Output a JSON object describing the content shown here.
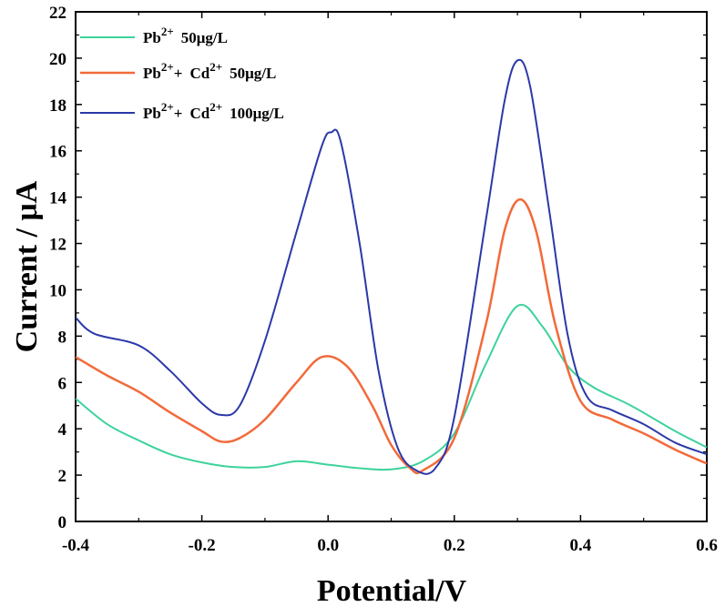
{
  "chart_data": {
    "type": "line",
    "xlabel": "Potential/V",
    "ylabel": "Current / μA",
    "xlim": [
      -0.4,
      0.6
    ],
    "ylim": [
      0,
      22
    ],
    "xticks": [
      "-0.4",
      "-0.2",
      "0.0",
      "0.2",
      "0.4",
      "0.6"
    ],
    "yticks": [
      "0",
      "2",
      "4",
      "6",
      "8",
      "10",
      "12",
      "14",
      "16",
      "18",
      "20",
      "22"
    ],
    "legend_position": "top-left",
    "series": [
      {
        "name": "Pb2+ 50μg/L",
        "legend": {
          "element": "Pb",
          "charge": "2+",
          "conc": "50μg/L"
        },
        "color": "#3dd39b",
        "points": [
          [
            -0.4,
            5.3
          ],
          [
            -0.35,
            4.2
          ],
          [
            -0.3,
            3.5
          ],
          [
            -0.25,
            2.9
          ],
          [
            -0.2,
            2.55
          ],
          [
            -0.15,
            2.35
          ],
          [
            -0.1,
            2.35
          ],
          [
            -0.05,
            2.6
          ],
          [
            0.0,
            2.45
          ],
          [
            0.05,
            2.3
          ],
          [
            0.1,
            2.25
          ],
          [
            0.15,
            2.6
          ],
          [
            0.2,
            3.8
          ],
          [
            0.25,
            6.8
          ],
          [
            0.3,
            9.3
          ],
          [
            0.34,
            8.4
          ],
          [
            0.38,
            6.7
          ],
          [
            0.42,
            5.8
          ],
          [
            0.48,
            5.0
          ],
          [
            0.55,
            3.9
          ],
          [
            0.6,
            3.2
          ]
        ]
      },
      {
        "name": "Pb2+ + Cd2+ 50μg/L",
        "legend": {
          "element1": "Pb",
          "charge1": "2+",
          "sep": "+",
          "element2": "Cd",
          "charge2": "2+",
          "conc": "50μg/L"
        },
        "color": "#f26a3a",
        "points": [
          [
            -0.4,
            7.1
          ],
          [
            -0.35,
            6.3
          ],
          [
            -0.3,
            5.6
          ],
          [
            -0.25,
            4.7
          ],
          [
            -0.2,
            3.9
          ],
          [
            -0.17,
            3.45
          ],
          [
            -0.14,
            3.6
          ],
          [
            -0.1,
            4.4
          ],
          [
            -0.05,
            6.0
          ],
          [
            -0.01,
            7.1
          ],
          [
            0.03,
            6.7
          ],
          [
            0.07,
            5.0
          ],
          [
            0.1,
            3.3
          ],
          [
            0.13,
            2.3
          ],
          [
            0.15,
            2.2
          ],
          [
            0.2,
            3.6
          ],
          [
            0.25,
            8.5
          ],
          [
            0.28,
            12.6
          ],
          [
            0.305,
            13.9
          ],
          [
            0.33,
            12.5
          ],
          [
            0.36,
            8.5
          ],
          [
            0.4,
            5.2
          ],
          [
            0.45,
            4.4
          ],
          [
            0.5,
            3.8
          ],
          [
            0.55,
            3.1
          ],
          [
            0.6,
            2.5
          ]
        ]
      },
      {
        "name": "Pb2+ + Cd2+ 100μg/L",
        "legend": {
          "element1": "Pb",
          "charge1": "2+",
          "sep": "+",
          "element2": "Cd",
          "charge2": "2+",
          "conc": "100μg/L"
        },
        "color": "#2b38a8",
        "points": [
          [
            -0.4,
            8.8
          ],
          [
            -0.37,
            8.1
          ],
          [
            -0.3,
            7.6
          ],
          [
            -0.25,
            6.5
          ],
          [
            -0.2,
            5.1
          ],
          [
            -0.17,
            4.6
          ],
          [
            -0.14,
            5.0
          ],
          [
            -0.1,
            7.8
          ],
          [
            -0.05,
            12.5
          ],
          [
            -0.01,
            16.2
          ],
          [
            0.005,
            16.8
          ],
          [
            0.02,
            16.4
          ],
          [
            0.05,
            12.0
          ],
          [
            0.08,
            6.5
          ],
          [
            0.11,
            3.2
          ],
          [
            0.14,
            2.2
          ],
          [
            0.17,
            2.3
          ],
          [
            0.2,
            4.5
          ],
          [
            0.25,
            13.0
          ],
          [
            0.28,
            18.2
          ],
          [
            0.3,
            19.9
          ],
          [
            0.32,
            18.8
          ],
          [
            0.35,
            13.5
          ],
          [
            0.38,
            8.0
          ],
          [
            0.41,
            5.4
          ],
          [
            0.45,
            4.8
          ],
          [
            0.5,
            4.2
          ],
          [
            0.55,
            3.4
          ],
          [
            0.6,
            2.9
          ]
        ]
      }
    ]
  }
}
